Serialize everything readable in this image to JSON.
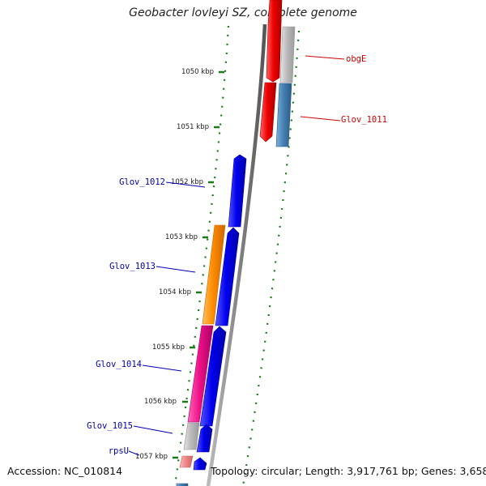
{
  "title": "Geobacter lovleyi SZ, complete genome",
  "footer": {
    "accession": "Accession: NC_010814",
    "topology": "Topology: circular; Length: 3,917,761 bp; Genes: 3,658"
  },
  "ticks": [
    "1050 kbp",
    "1051 kbp",
    "1052 kbp",
    "1053 kbp",
    "1054 kbp",
    "1055 kbp",
    "1056 kbp",
    "1057 kbp"
  ],
  "gene_labels": [
    {
      "text": "obgE",
      "color": "#cc0000"
    },
    {
      "text": "Glov_1011",
      "color": "#cc0000"
    },
    {
      "text": "Glov_1012",
      "color": "#0000aa"
    },
    {
      "text": "Glov_1013",
      "color": "#0000aa"
    },
    {
      "text": "Glov_1014",
      "color": "#0000aa"
    },
    {
      "text": "Glov_1015",
      "color": "#0000aa"
    },
    {
      "text": "rpsU",
      "color": "#0000aa"
    }
  ],
  "colors": {
    "red_gene": "#ee0000",
    "blue_gene": "#0000ee",
    "orange_gene": "#ff8c00",
    "pink_gene": "#ee1188",
    "steelblue_gene": "#4682b4",
    "gray_gene": "#bbbbbb",
    "lightred_gene": "#ee8888",
    "backbone": "#888888",
    "dots": "#1a7a1a"
  }
}
